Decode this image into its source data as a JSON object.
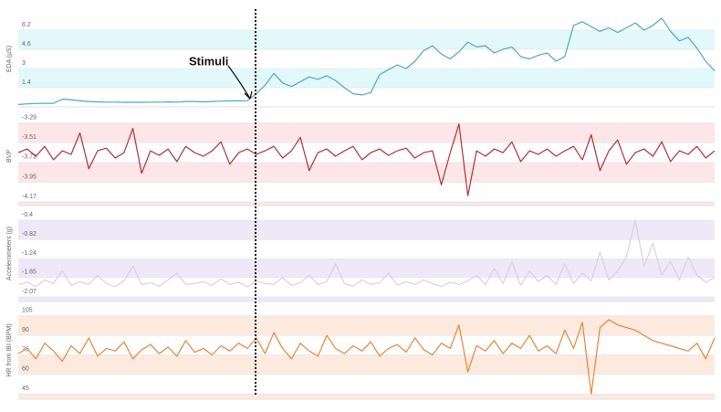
{
  "chart_data": [
    {
      "type": "line",
      "ylabel": "EDA (µS)",
      "color": "#4ba8c8",
      "band_color": "#e2f8fb",
      "ylim": [
        -0.2,
        7.8
      ],
      "yticks": [
        6.2,
        4.6,
        3,
        1.4
      ],
      "annotation": "Stimuli",
      "values": [
        0.0,
        0.05,
        0.08,
        0.1,
        0.1,
        0.45,
        0.4,
        0.3,
        0.25,
        0.22,
        0.2,
        0.2,
        0.18,
        0.18,
        0.18,
        0.2,
        0.2,
        0.22,
        0.2,
        0.25,
        0.25,
        0.22,
        0.25,
        0.28,
        0.3,
        0.3,
        0.32,
        0.9,
        1.6,
        2.6,
        1.8,
        1.5,
        1.9,
        2.3,
        2.1,
        2.4,
        2.0,
        1.4,
        0.9,
        0.8,
        1.0,
        2.5,
        2.9,
        3.3,
        3.0,
        3.6,
        4.5,
        4.9,
        4.2,
        3.8,
        4.4,
        5.2,
        4.8,
        4.9,
        4.3,
        4.6,
        4.8,
        4.0,
        3.8,
        4.1,
        4.3,
        3.6,
        4.0,
        6.6,
        6.9,
        6.5,
        6.1,
        6.4,
        6.0,
        6.4,
        6.8,
        6.2,
        6.6,
        7.2,
        6.1,
        5.3,
        5.6,
        4.7,
        3.6,
        2.8
      ]
    },
    {
      "type": "line",
      "ylabel": "BVP",
      "color": "#b03038",
      "band_color": "#fde6e8",
      "ylim": [
        -4.21,
        -3.11
      ],
      "yticks": [
        -3.29,
        -3.51,
        -3.73,
        -3.95,
        -4.17
      ],
      "values": [
        -3.62,
        -3.58,
        -3.66,
        -3.55,
        -3.7,
        -3.6,
        -3.64,
        -3.4,
        -3.8,
        -3.6,
        -3.57,
        -3.68,
        -3.62,
        -3.35,
        -3.85,
        -3.6,
        -3.65,
        -3.58,
        -3.72,
        -3.55,
        -3.62,
        -3.66,
        -3.6,
        -3.5,
        -3.75,
        -3.62,
        -3.58,
        -3.64,
        -3.6,
        -3.55,
        -3.68,
        -3.6,
        -3.45,
        -3.82,
        -3.62,
        -3.58,
        -3.66,
        -3.6,
        -3.55,
        -3.7,
        -3.62,
        -3.58,
        -3.65,
        -3.6,
        -3.57,
        -3.68,
        -3.62,
        -3.6,
        -3.98,
        -3.62,
        -3.3,
        -4.1,
        -3.6,
        -3.66,
        -3.58,
        -3.62,
        -3.5,
        -3.72,
        -3.6,
        -3.64,
        -3.58,
        -3.66,
        -3.6,
        -3.55,
        -3.7,
        -3.42,
        -3.82,
        -3.6,
        -3.48,
        -3.75,
        -3.62,
        -3.58,
        -3.66,
        -3.5,
        -3.72,
        -3.6,
        -3.64,
        -3.55,
        -3.68,
        -3.6
      ]
    },
    {
      "type": "line",
      "ylabel": "Accelerometers (g)",
      "color": "#d8d0e4",
      "band_color": "#eee8f8",
      "ylim": [
        -2.17,
        -0.08
      ],
      "yticks": [
        -0.4,
        -0.82,
        -1.24,
        -1.65,
        -2.07
      ],
      "values": [
        -1.8,
        -1.75,
        -1.85,
        -1.7,
        -1.78,
        -1.5,
        -1.82,
        -1.74,
        -1.8,
        -1.6,
        -1.78,
        -1.85,
        -1.72,
        -1.4,
        -1.8,
        -1.76,
        -1.84,
        -1.7,
        -1.55,
        -1.8,
        -1.78,
        -1.74,
        -1.82,
        -1.68,
        -1.8,
        -1.75,
        -1.85,
        -1.72,
        -1.78,
        -1.8,
        -1.65,
        -1.82,
        -1.76,
        -1.6,
        -1.8,
        -1.74,
        -1.35,
        -1.78,
        -1.84,
        -1.7,
        -1.8,
        -1.76,
        -1.55,
        -1.82,
        -1.74,
        -1.8,
        -1.7,
        -1.78,
        -1.84,
        -1.75,
        -1.8,
        -1.72,
        -1.6,
        -1.8,
        -1.45,
        -1.78,
        -1.3,
        -1.82,
        -1.5,
        -1.74,
        -1.6,
        -1.8,
        -1.35,
        -1.78,
        -1.55,
        -1.72,
        -1.1,
        -1.7,
        -1.5,
        -1.2,
        -0.4,
        -1.4,
        -0.9,
        -1.6,
        -1.3,
        -1.7,
        -1.2,
        -1.6,
        -1.75,
        -1.65
      ]
    },
    {
      "type": "line",
      "ylabel": "HR from IBI (BPM)",
      "color": "#e8843a",
      "band_color": "#fdeadf",
      "ylim": [
        41,
        116
      ],
      "yticks": [
        105,
        90,
        75,
        60,
        45
      ],
      "values": [
        76,
        80,
        72,
        84,
        78,
        70,
        82,
        76,
        88,
        74,
        80,
        78,
        85,
        72,
        79,
        83,
        76,
        81,
        74,
        86,
        77,
        80,
        75,
        82,
        78,
        84,
        80,
        88,
        76,
        92,
        80,
        72,
        84,
        78,
        74,
        90,
        80,
        76,
        82,
        78,
        85,
        74,
        80,
        83,
        77,
        88,
        79,
        75,
        84,
        80,
        98,
        62,
        82,
        78,
        86,
        76,
        84,
        80,
        90,
        78,
        82,
        76,
        94,
        80,
        100,
        45,
        96,
        102,
        98,
        96,
        94,
        90,
        86,
        84,
        82,
        80,
        78,
        84,
        72,
        88
      ]
    }
  ]
}
